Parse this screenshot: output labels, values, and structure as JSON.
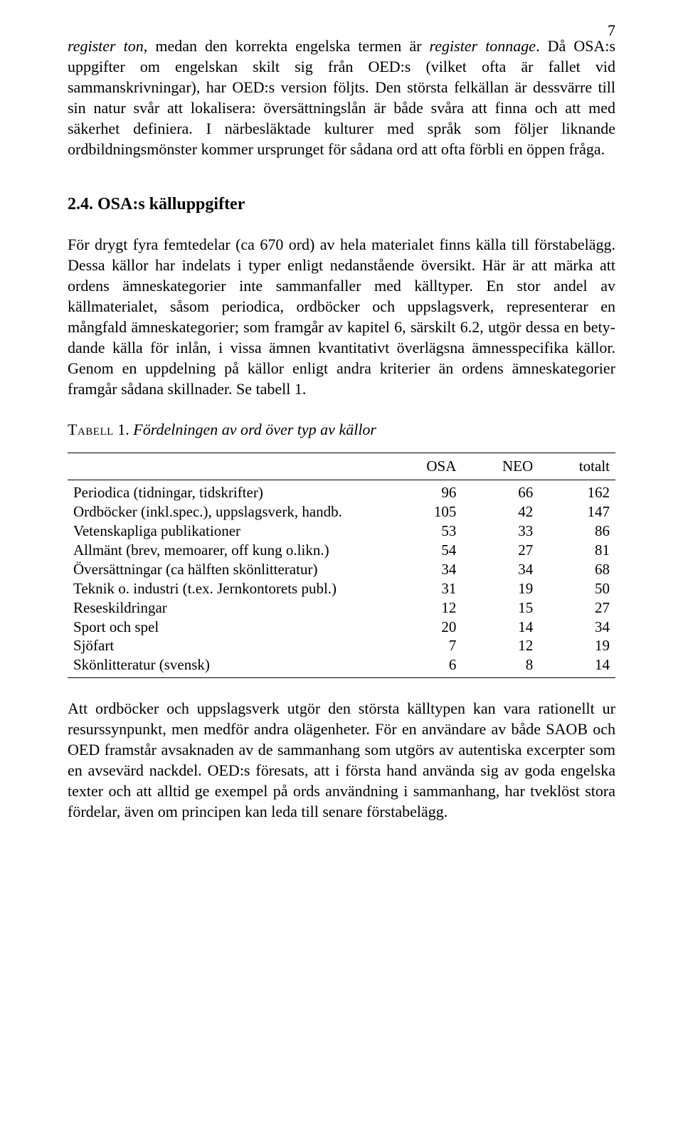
{
  "page_number": "7",
  "para1_a": "register ton",
  "para1_b": ", medan den korrekta engelska termen är ",
  "para1_c": "register tonnage",
  "para1_d": ". Då OSA:s uppgifter om engelskan skilt sig från OED:s (vilket ofta är fallet vid sammanskrivningar), har OED:s version följts. Den största felkällan är dessvärre till sin natur svår att lokalisera: översättningslån är både svåra att finna och att med säkerhet definiera. I närbesläktade kulturer med språk som följer liknande ordbildnings­mönster kommer ursprunget för sådana ord att ofta förbli en öppen fråga.",
  "heading": "2.4.  OSA:s  källuppgifter",
  "para2": "För drygt fyra femtedelar (ca 670 ord) av hela materialet finns källa till förstabelägg. Dessa källor har indelats i typer enligt nedanstående översikt. Här är att märka att ordens ämneskategorier inte samman­faller med källtyper. En stor andel av källmaterialet, såsom periodica, ordböcker och uppslagsverk, representerar en mångfald ämneskate­gorier; som framgår av kapitel 6, särskilt 6.2, utgör dessa en bety­dande källa för inlån, i vissa ämnen kvantitativt överlägsna ämnesspeci­fika källor. Genom en uppdelning på källor enligt andra kriterier än ordens ämneskategorier framgår sådana skillnader. Se tabell 1.",
  "table_caption_a": "Tabell",
  "table_caption_b": " 1. ",
  "table_caption_c": "Fördelningen av ord över typ av källor",
  "table": {
    "columns": [
      "",
      "OSA",
      "NEO",
      "totalt"
    ],
    "rows": [
      [
        "Periodica (tidningar, tidskrifter)",
        "96",
        "66",
        "162"
      ],
      [
        "Ordböcker (inkl.spec.), uppslagsverk, handb.",
        "105",
        "42",
        "147"
      ],
      [
        "Vetenskapliga publikationer",
        "53",
        "33",
        "86"
      ],
      [
        "Allmänt (brev, memoarer, off kung o.likn.)",
        "54",
        "27",
        "81"
      ],
      [
        "Översättningar (ca hälften skönlitteratur)",
        "34",
        "34",
        "68"
      ],
      [
        "Teknik o. industri (t.ex. Jernkontorets publ.)",
        "31",
        "19",
        "50"
      ],
      [
        "Reseskildringar",
        "12",
        "15",
        "27"
      ],
      [
        "Sport och spel",
        "20",
        "14",
        "34"
      ],
      [
        "Sjöfart",
        "7",
        "12",
        "19"
      ],
      [
        "Skönlitteratur (svensk)",
        "6",
        "8",
        "14"
      ]
    ]
  },
  "para3": "Att ordböcker och uppslagsverk utgör den största källtypen kan vara rationellt ur resurssynpunkt, men medför andra olägenheter. För en användare av både SAOB och OED framstår avsaknaden av de sam­manhang som utgörs av autentiska excerpter som en avsevärd nackdel. OED:s föresats, att i första hand använda sig av goda engelska texter och att alltid ge exempel på ords användning i sammanhang, har tvek­löst stora fördelar, även om principen kan leda till senare förstabelägg."
}
